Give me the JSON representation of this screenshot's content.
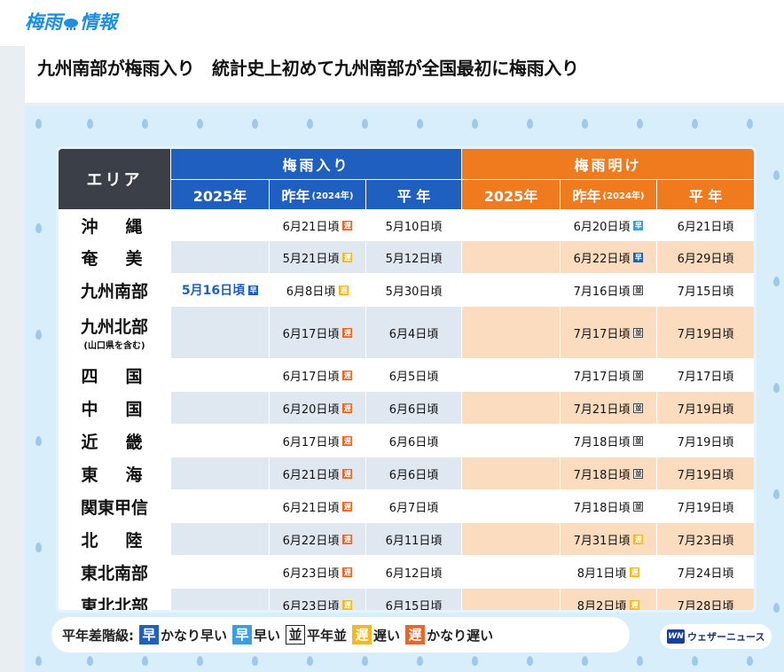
{
  "logo": {
    "text_a": "梅雨",
    "text_b": "情報"
  },
  "headline": "九州南部が梅雨入り　統計史上初めて九州南部が全国最初に梅雨入り",
  "table": {
    "area_header": "エリア",
    "iri_header": "梅雨入り",
    "ake_header": "梅雨明け",
    "sub_2025": "2025年",
    "sub_last": "昨年",
    "sub_last_note": "(2024年)",
    "sub_normal": "平 年",
    "rows": [
      {
        "area": "沖　縄",
        "note": "",
        "iri_2025": "",
        "iri_last": "6月21日頃",
        "iri_last_badge": "遅",
        "iri_normal": "5月10日頃",
        "ake_2025": "",
        "ake_last": "6月20日頃",
        "ake_last_badge": "早",
        "ake_normal": "6月21日頃"
      },
      {
        "area": "奄　美",
        "note": "",
        "iri_2025": "",
        "iri_last": "5月21日頃",
        "iri_last_badge": "遅",
        "iri_normal": "5月12日頃",
        "ake_2025": "",
        "ake_last": "6月22日頃",
        "ake_last_badge": "早",
        "ake_normal": "6月29日頃"
      },
      {
        "area": "九州南部",
        "note": "",
        "iri_2025": "5月16日頃",
        "iri_2025_badge": "早",
        "iri_last": "6月8日頃",
        "iri_last_badge": "遅",
        "iri_normal": "5月30日頃",
        "ake_2025": "",
        "ake_last": "7月16日頃",
        "ake_last_badge": "並",
        "ake_normal": "7月15日頃"
      },
      {
        "area": "九州北部",
        "note": "(山口県を含む)",
        "iri_2025": "",
        "iri_last": "6月17日頃",
        "iri_last_badge": "遅",
        "iri_normal": "6月4日頃",
        "ake_2025": "",
        "ake_last": "7月17日頃",
        "ake_last_badge": "並",
        "ake_normal": "7月19日頃"
      },
      {
        "area": "四　国",
        "note": "",
        "iri_2025": "",
        "iri_last": "6月17日頃",
        "iri_last_badge": "遅",
        "iri_normal": "6月5日頃",
        "ake_2025": "",
        "ake_last": "7月17日頃",
        "ake_last_badge": "並",
        "ake_normal": "7月17日頃"
      },
      {
        "area": "中　国",
        "note": "",
        "iri_2025": "",
        "iri_last": "6月20日頃",
        "iri_last_badge": "遅",
        "iri_normal": "6月6日頃",
        "ake_2025": "",
        "ake_last": "7月21日頃",
        "ake_last_badge": "並",
        "ake_normal": "7月19日頃"
      },
      {
        "area": "近　畿",
        "note": "",
        "iri_2025": "",
        "iri_last": "6月17日頃",
        "iri_last_badge": "遅",
        "iri_normal": "6月6日頃",
        "ake_2025": "",
        "ake_last": "7月18日頃",
        "ake_last_badge": "並",
        "ake_normal": "7月19日頃"
      },
      {
        "area": "東　海",
        "note": "",
        "iri_2025": "",
        "iri_last": "6月21日頃",
        "iri_last_badge": "遅",
        "iri_normal": "6月6日頃",
        "ake_2025": "",
        "ake_last": "7月18日頃",
        "ake_last_badge": "並",
        "ake_normal": "7月19日頃"
      },
      {
        "area": "関東甲信",
        "note": "",
        "iri_2025": "",
        "iri_last": "6月21日頃",
        "iri_last_badge": "遅",
        "iri_normal": "6月7日頃",
        "ake_2025": "",
        "ake_last": "7月18日頃",
        "ake_last_badge": "並",
        "ake_normal": "7月19日頃"
      },
      {
        "area": "北　陸",
        "note": "",
        "iri_2025": "",
        "iri_last": "6月22日頃",
        "iri_last_badge": "遅",
        "iri_normal": "6月11日頃",
        "ake_2025": "",
        "ake_last": "7月31日頃",
        "ake_last_badge": "遅",
        "ake_normal": "7月23日頃"
      },
      {
        "area": "東北南部",
        "note": "",
        "iri_2025": "",
        "iri_last": "6月23日頃",
        "iri_last_badge": "遅",
        "iri_normal": "6月12日頃",
        "ake_2025": "",
        "ake_last": "8月1日頃",
        "ake_last_badge": "遅",
        "ake_normal": "7月24日頃"
      },
      {
        "area": "東北北部",
        "note": "",
        "iri_2025": "",
        "iri_last": "6月23日頃",
        "iri_last_badge": "遅",
        "iri_normal": "6月15日頃",
        "ake_2025": "",
        "ake_last": "8月2日頃",
        "ake_last_badge": "遅",
        "ake_normal": "7月28日頃"
      }
    ]
  },
  "legend": {
    "title": "平年差階級:",
    "items": [
      {
        "badge": "早",
        "label": "かなり早い",
        "color": "#1f5fbf"
      },
      {
        "badge": "早",
        "label": "早い",
        "color": "#3b9ee0"
      },
      {
        "badge": "並",
        "label": "平年並",
        "color": "#ffffff"
      },
      {
        "badge": "遅",
        "label": "遅い",
        "color": "#f5b820"
      },
      {
        "badge": "遅",
        "label": "かなり遅い",
        "color": "#e8662a"
      }
    ]
  },
  "brand": {
    "mark": "WN",
    "name": "ウェザーニュース"
  },
  "colors": {
    "iri": "#1f5fbf",
    "ake": "#f07a1e",
    "header_dark": "#3a3f48",
    "background_blue": "#d9eefb"
  }
}
